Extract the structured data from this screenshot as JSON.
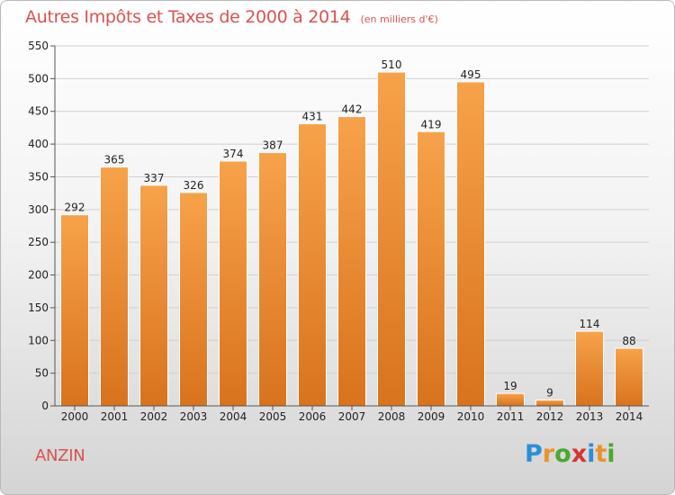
{
  "header": {
    "title": "Autres Impôts et Taxes de 2000 à 2014",
    "unit_note": "(en milliers d'€)"
  },
  "footer": {
    "city": "ANZIN",
    "logo_text": "Proxiti",
    "logo_colors": [
      "#2a8fd6",
      "#e8942a",
      "#4aa832",
      "#d6352f",
      "#2a8fd6",
      "#e8942a",
      "#4aa832"
    ]
  },
  "colors": {
    "bar_light": "#f7a24a",
    "bar_dark": "#d9731d",
    "title": "#d9534f",
    "grid": "#d0d0d0",
    "axis_text": "#222222"
  },
  "chart_data": {
    "type": "bar",
    "title": "Autres Impôts et Taxes de 2000 à 2014",
    "subtitle": "(en milliers d'€)",
    "xlabel": "",
    "ylabel": "",
    "categories": [
      "2000",
      "2001",
      "2002",
      "2003",
      "2004",
      "2005",
      "2006",
      "2007",
      "2008",
      "2009",
      "2010",
      "2011",
      "2012",
      "2013",
      "2014"
    ],
    "values": [
      292,
      365,
      337,
      326,
      374,
      387,
      431,
      442,
      510,
      419,
      495,
      19,
      9,
      114,
      88
    ],
    "data_labels": [
      "292",
      "365",
      "337",
      "326",
      "374",
      "387",
      "431",
      "442",
      "510",
      "419",
      "495",
      "19",
      "9",
      "114",
      "88"
    ],
    "ylim": [
      0,
      550
    ],
    "yticks": [
      0,
      50,
      100,
      150,
      200,
      250,
      300,
      350,
      400,
      450,
      500,
      550
    ],
    "grid": true,
    "legend": "none"
  }
}
